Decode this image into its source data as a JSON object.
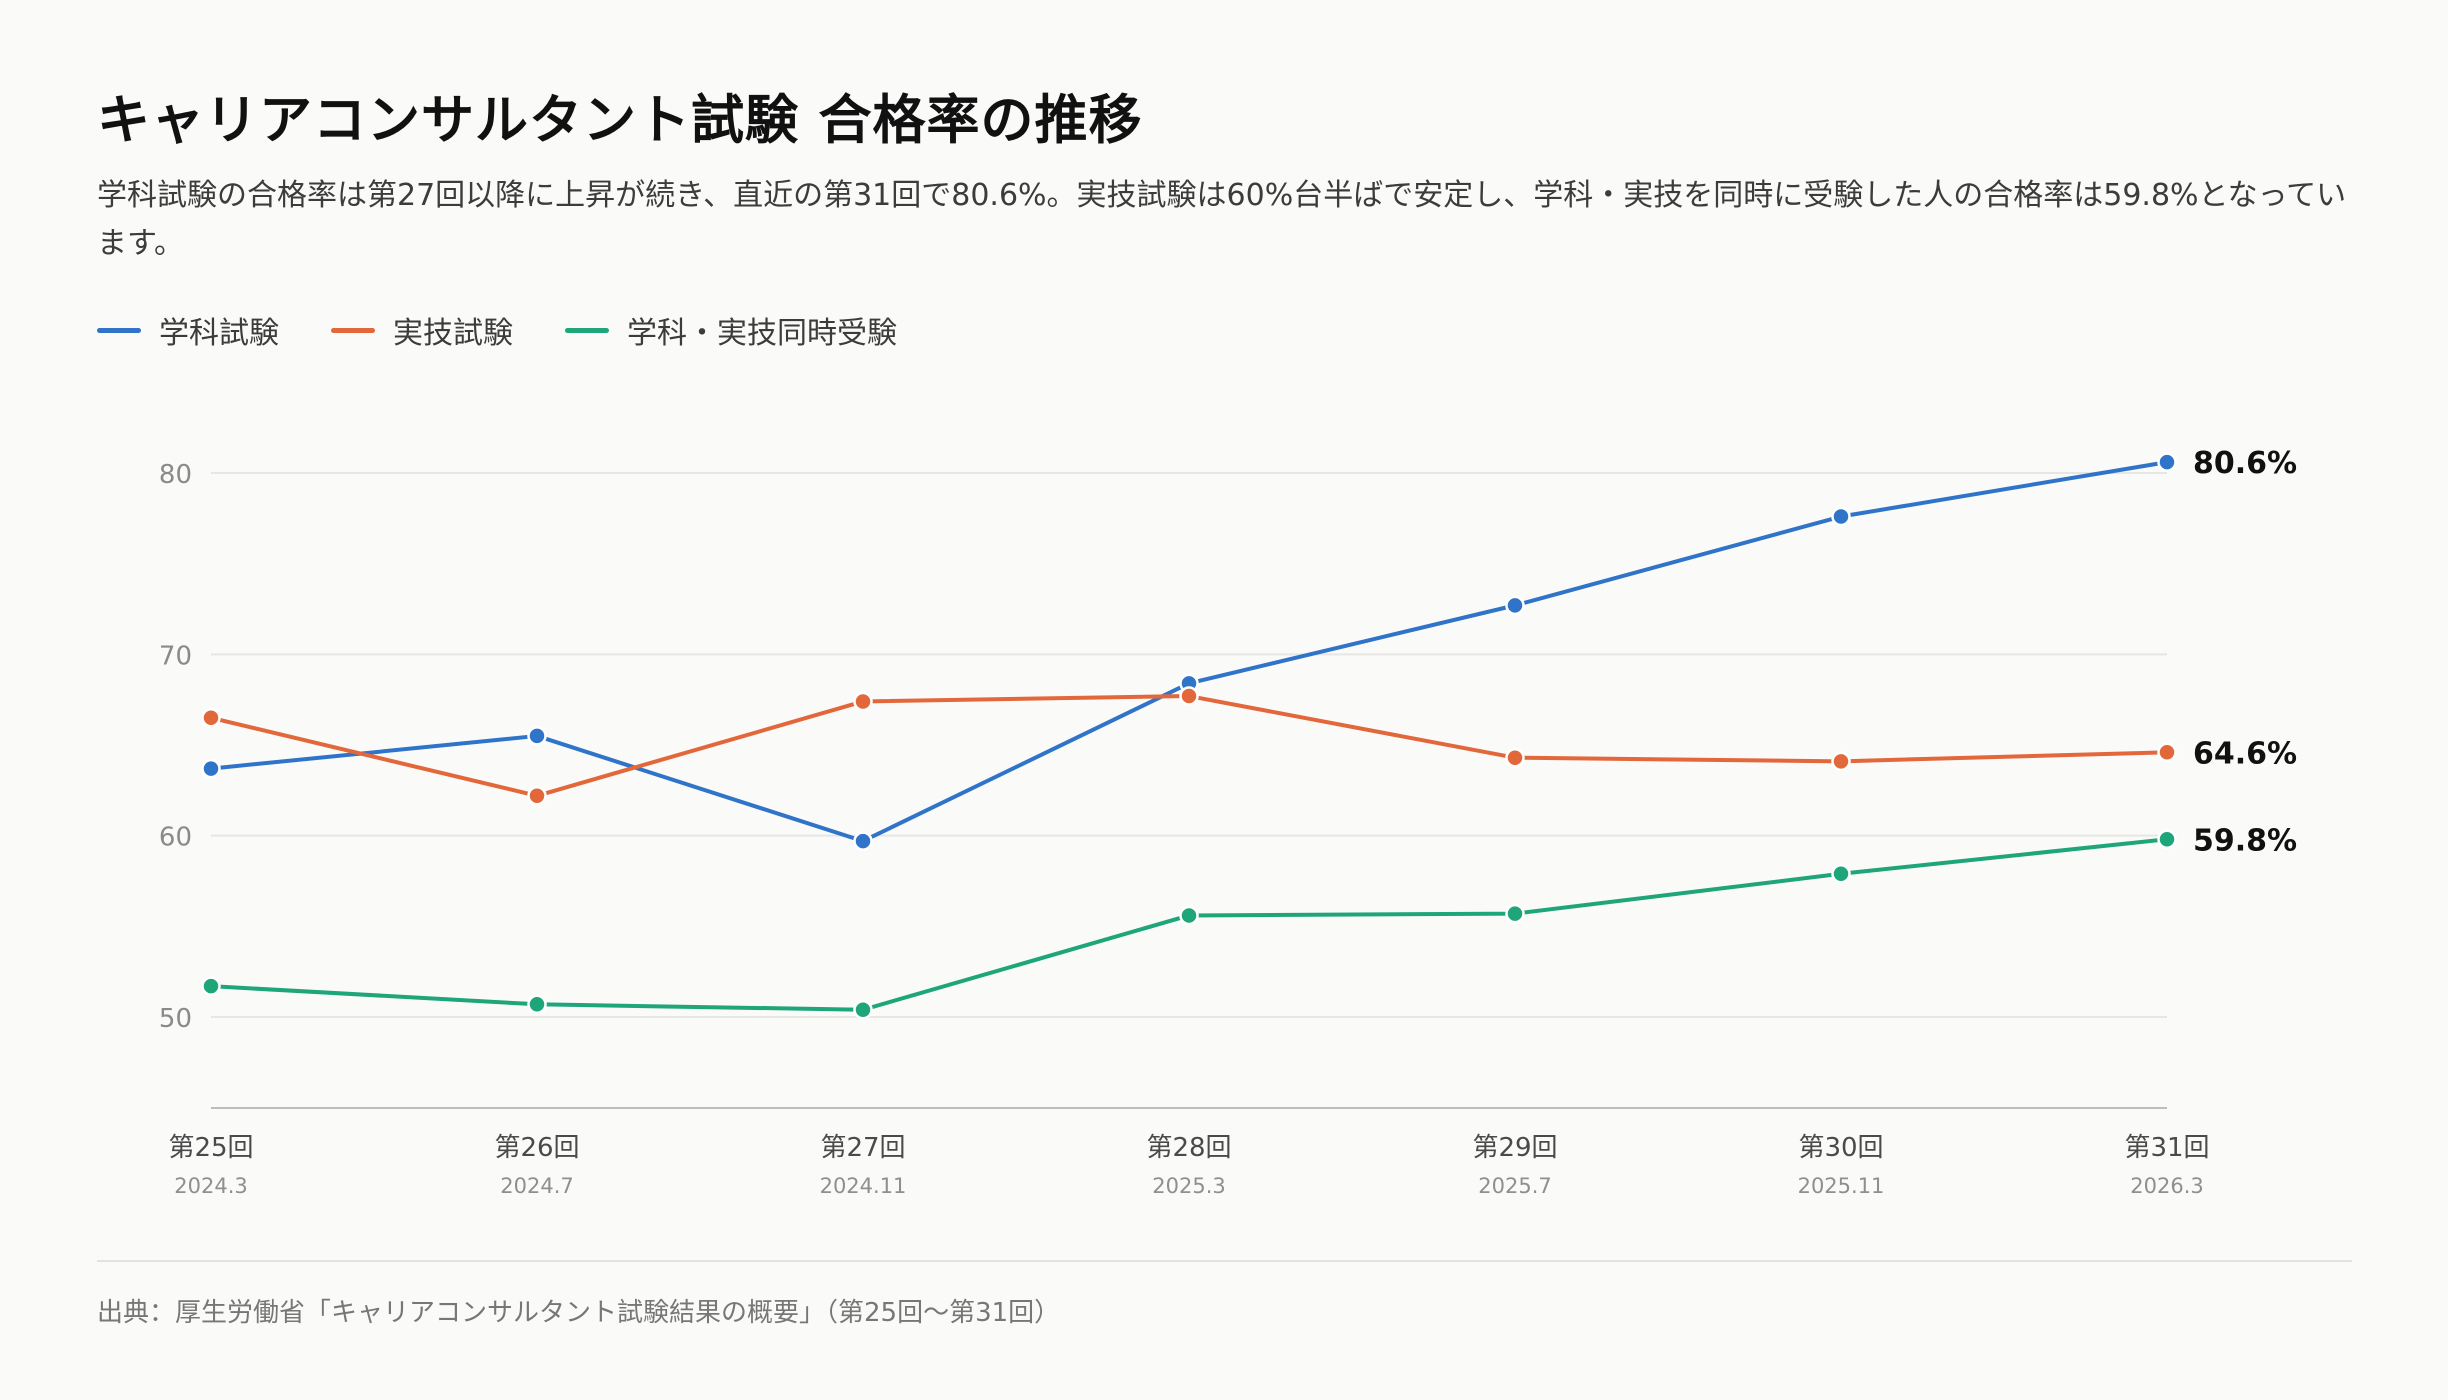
{
  "title": "キャリアコンサルタント試験 合格率の推移",
  "subtitle": "学科試験の合格率は第27回以降に上昇が続き、直近の第31回で80.6%。実技試験は60%台半ばで安定し、学科・実技を同時に受験した人の合格率は59.8%となっています。",
  "source": "出典：厚生労働省「キャリアコンサルタント試験結果の概要」（第25回〜第31回）",
  "colors": {
    "background": "#fafaf8",
    "grid": "#e6e6e4",
    "axis": "#bdbdbb",
    "tick_text": "#8a8a8a",
    "category_text": "#4a4a4a",
    "date_text": "#8f8f8f"
  },
  "chart_data": {
    "type": "line",
    "categories": [
      "第25回",
      "第26回",
      "第27回",
      "第28回",
      "第29回",
      "第30回",
      "第31回"
    ],
    "dates": [
      "2024.3",
      "2024.7",
      "2024.11",
      "2025.3",
      "2025.7",
      "2025.11",
      "2026.3"
    ],
    "ylim": [
      45,
      82
    ],
    "yticks": [
      "50",
      "60",
      "70",
      "80"
    ],
    "grid": true,
    "legend_position": "top-left",
    "series": [
      {
        "name": "学科試験",
        "color": "#2f74c8",
        "values": [
          63.7,
          65.5,
          59.7,
          68.4,
          72.7,
          77.6,
          80.6
        ],
        "end_label": "80.6%"
      },
      {
        "name": "実技試験",
        "color": "#e2673a",
        "values": [
          66.5,
          62.2,
          67.4,
          67.7,
          64.3,
          64.1,
          64.6
        ],
        "end_label": "64.6%"
      },
      {
        "name": "学科・実技同時受験",
        "color": "#1fa57a",
        "values": [
          51.7,
          50.7,
          50.4,
          55.6,
          55.7,
          57.9,
          59.8
        ],
        "end_label": "59.8%"
      }
    ]
  }
}
